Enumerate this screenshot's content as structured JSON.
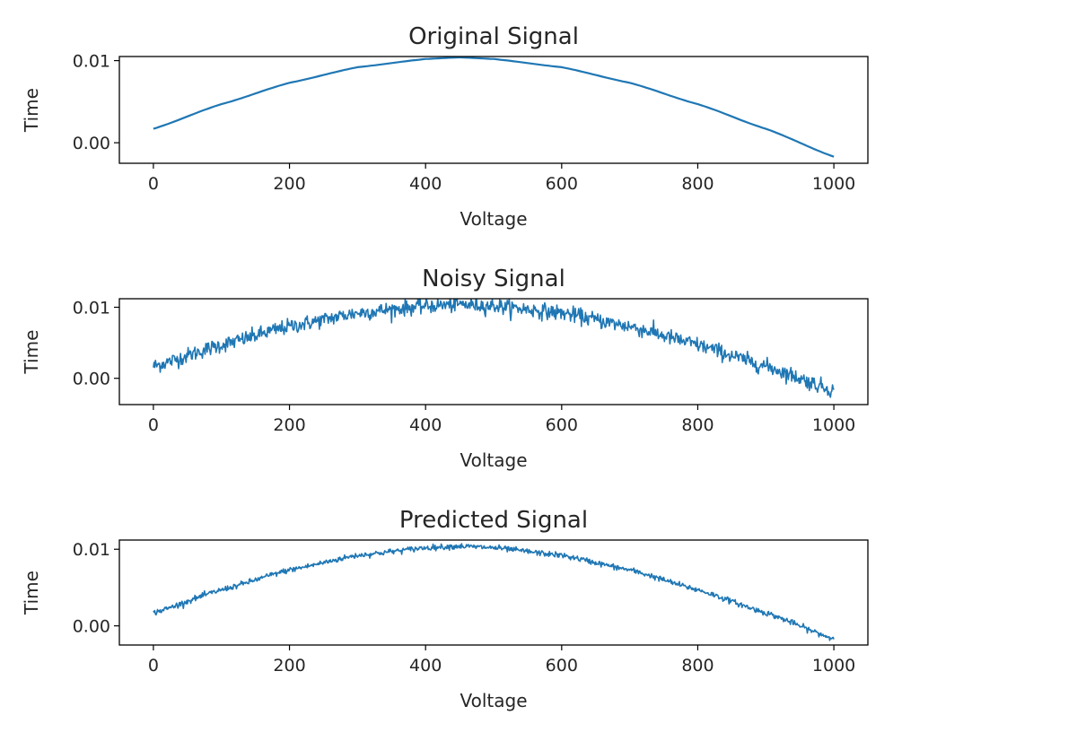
{
  "chart_data": [
    {
      "type": "line",
      "title": "Original Signal",
      "xlabel": "Voltage",
      "ylabel": "Time",
      "xlim": [
        -50,
        1050
      ],
      "ylim": [
        -0.0025,
        0.0105
      ],
      "xticks": [
        "0",
        "200",
        "400",
        "600",
        "800",
        "1000"
      ],
      "xtick_values": [
        0,
        200,
        400,
        600,
        800,
        1000
      ],
      "yticks": [
        "0.00",
        "0.01"
      ],
      "ytick_values": [
        0.0,
        0.01
      ],
      "grid": false,
      "color": "#1f77b4",
      "noise": 0,
      "series": [
        {
          "x": [
            0,
            100,
            200,
            300,
            400,
            450,
            500,
            600,
            700,
            800,
            900,
            1000
          ],
          "values": [
            0.0017,
            0.0047,
            0.0073,
            0.0092,
            0.0102,
            0.0104,
            0.0102,
            0.0092,
            0.0073,
            0.0047,
            0.0017,
            -0.0017
          ]
        }
      ]
    },
    {
      "type": "line",
      "title": "Noisy Signal",
      "xlabel": "Voltage",
      "ylabel": "Time",
      "xlim": [
        -50,
        1050
      ],
      "ylim": [
        -0.0037,
        0.0112
      ],
      "xticks": [
        "0",
        "200",
        "400",
        "600",
        "800",
        "1000"
      ],
      "xtick_values": [
        0,
        200,
        400,
        600,
        800,
        1000
      ],
      "yticks": [
        "0.00",
        "0.01"
      ],
      "ytick_values": [
        0.0,
        0.01
      ],
      "grid": false,
      "color": "#1f77b4",
      "noise": 0.0012,
      "series": [
        {
          "x": [
            0,
            100,
            200,
            300,
            400,
            450,
            500,
            600,
            700,
            800,
            900,
            1000
          ],
          "values": [
            0.0017,
            0.0047,
            0.0073,
            0.0092,
            0.0102,
            0.0104,
            0.0102,
            0.0092,
            0.0073,
            0.0047,
            0.0017,
            -0.0017
          ]
        }
      ]
    },
    {
      "type": "line",
      "title": "Predicted Signal",
      "xlabel": "Voltage",
      "ylabel": "Time",
      "xlim": [
        -50,
        1050
      ],
      "ylim": [
        -0.0025,
        0.0112
      ],
      "xticks": [
        "0",
        "200",
        "400",
        "600",
        "800",
        "1000"
      ],
      "xtick_values": [
        0,
        200,
        400,
        600,
        800,
        1000
      ],
      "yticks": [
        "0.00",
        "0.01"
      ],
      "ytick_values": [
        0.0,
        0.01
      ],
      "grid": false,
      "color": "#1f77b4",
      "noise": 0.0004,
      "series": [
        {
          "x": [
            0,
            100,
            200,
            300,
            400,
            450,
            500,
            600,
            700,
            800,
            900,
            1000
          ],
          "values": [
            0.0017,
            0.0047,
            0.0073,
            0.0092,
            0.0102,
            0.0104,
            0.0102,
            0.0092,
            0.0073,
            0.0047,
            0.0017,
            -0.0017
          ]
        }
      ]
    }
  ]
}
